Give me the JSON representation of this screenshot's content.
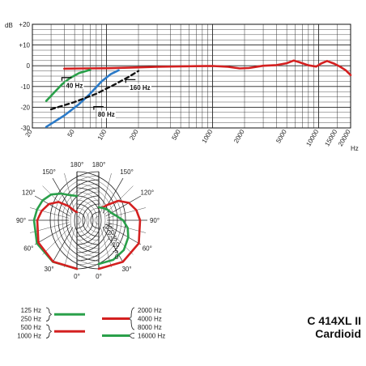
{
  "chart_data": [
    {
      "type": "line",
      "ylabel": "dB",
      "xlabel_unit": "Hz",
      "x_scale": "log",
      "xlim": [
        20,
        20000
      ],
      "ylim": [
        -30,
        20
      ],
      "grid": true,
      "y_ticks": [
        "+20",
        "+10",
        "0",
        "-10",
        "-20",
        "-30"
      ],
      "x_ticks": [
        {
          "value": 20,
          "label": "20"
        },
        {
          "value": 50,
          "label": "50"
        },
        {
          "value": 100,
          "label": "100"
        },
        {
          "value": 200,
          "label": "200"
        },
        {
          "value": 500,
          "label": "500"
        },
        {
          "value": 1000,
          "label": "1000"
        },
        {
          "value": 2000,
          "label": "2000"
        },
        {
          "value": 5000,
          "label": "5000"
        },
        {
          "value": 10000,
          "label": "10000"
        },
        {
          "value": 15000,
          "label": "15000"
        },
        {
          "value": 20000,
          "label": "20000"
        }
      ],
      "annotations": [
        {
          "text": "40 Hz",
          "x": 40,
          "y": -10
        },
        {
          "text": "80 Hz",
          "x": 80,
          "y": -24
        },
        {
          "text": "160 Hz",
          "x": 160,
          "y": -11
        }
      ],
      "series": [
        {
          "color": "#d42020",
          "style": "solid",
          "points": [
            [
              40,
              -1.4
            ],
            [
              60,
              -1.3
            ],
            [
              100,
              -1.2
            ],
            [
              200,
              -0.8
            ],
            [
              300,
              -0.5
            ],
            [
              500,
              -0.3
            ],
            [
              700,
              -0.2
            ],
            [
              1000,
              -0.1
            ],
            [
              1400,
              -0.5
            ],
            [
              1800,
              -1.3
            ],
            [
              2200,
              -1.1
            ],
            [
              3000,
              0
            ],
            [
              4000,
              0.3
            ],
            [
              5000,
              1.2
            ],
            [
              5800,
              2.5
            ],
            [
              6500,
              1.8
            ],
            [
              8000,
              0.2
            ],
            [
              9500,
              -0.4
            ],
            [
              10500,
              1
            ],
            [
              12000,
              2.3
            ],
            [
              14000,
              1
            ],
            [
              16000,
              -0.5
            ],
            [
              18000,
              -2.2
            ],
            [
              20000,
              -4.5
            ]
          ]
        },
        {
          "color": "#2aa04a",
          "style": "solid",
          "points": [
            [
              27,
              -17
            ],
            [
              32,
              -13
            ],
            [
              38,
              -9
            ],
            [
              45,
              -6
            ],
            [
              55,
              -3.5
            ],
            [
              70,
              -2
            ]
          ]
        },
        {
          "color": "#2a7ac8",
          "style": "solid",
          "points": [
            [
              27,
              -29.5
            ],
            [
              40,
              -24
            ],
            [
              55,
              -18.5
            ],
            [
              70,
              -13.5
            ],
            [
              90,
              -7.5
            ],
            [
              110,
              -4
            ],
            [
              130,
              -2.2
            ]
          ]
        },
        {
          "color": "#111111",
          "style": "dashed",
          "points": [
            [
              30,
              -21
            ],
            [
              50,
              -17.5
            ],
            [
              80,
              -13.5
            ],
            [
              120,
              -9
            ],
            [
              160,
              -5.5
            ],
            [
              200,
              -2.5
            ]
          ]
        }
      ]
    },
    {
      "type": "polar",
      "angle_labels_left": [
        "180°",
        "150°",
        "120°",
        "90°",
        "60°",
        "30°",
        "0°"
      ],
      "angle_labels_right": [
        "180°",
        "150°",
        "120°",
        "90°",
        "60°",
        "30°",
        "0°"
      ],
      "radial_labels": [
        "0",
        "-5",
        "-10",
        "-15",
        "-20",
        "-25"
      ],
      "radial_db": [
        0,
        -5,
        -10,
        -15,
        -20,
        -25
      ],
      "left_series": [
        {
          "name": "125 Hz / 250 Hz",
          "color": "#2aa04a",
          "points": [
            [
              0,
              0
            ],
            [
              30,
              -0.3
            ],
            [
              60,
              -1.5
            ],
            [
              90,
              -3.5
            ],
            [
              105,
              -4.5
            ],
            [
              120,
              -5.5
            ],
            [
              135,
              -7.5
            ],
            [
              150,
              -11
            ],
            [
              165,
              -14
            ],
            [
              180,
              -15
            ]
          ]
        },
        {
          "name": "500 Hz / 1000 Hz",
          "color": "#d42020",
          "points": [
            [
              0,
              0
            ],
            [
              30,
              -0.5
            ],
            [
              60,
              -2.5
            ],
            [
              90,
              -5.5
            ],
            [
              105,
              -7.5
            ],
            [
              120,
              -10
            ],
            [
              135,
              -14
            ],
            [
              150,
              -20
            ],
            [
              165,
              -24
            ],
            [
              180,
              -25
            ]
          ]
        }
      ],
      "right_series": [
        {
          "name": "2000 Hz / 4000 Hz / 8000 Hz",
          "color": "#d42020",
          "points": [
            [
              0,
              0
            ],
            [
              30,
              -0.3
            ],
            [
              60,
              -1.5
            ],
            [
              90,
              -4.5
            ],
            [
              105,
              -6
            ],
            [
              120,
              -8.5
            ],
            [
              135,
              -13
            ],
            [
              150,
              -19
            ],
            [
              165,
              -22
            ],
            [
              180,
              -22
            ]
          ]
        },
        {
          "name": "16000 Hz",
          "color": "#2aa04a",
          "points": [
            [
              0,
              -3
            ],
            [
              20,
              -4
            ],
            [
              40,
              -6
            ],
            [
              60,
              -9
            ],
            [
              75,
              -11.5
            ],
            [
              90,
              -15
            ],
            [
              105,
              -19
            ],
            [
              120,
              -21
            ],
            [
              140,
              -21.5
            ],
            [
              160,
              -22
            ],
            [
              180,
              -22
            ]
          ]
        }
      ],
      "legend_left": [
        {
          "labels": [
            "125 Hz",
            "250 Hz"
          ],
          "color": "#2aa04a"
        },
        {
          "labels": [
            "500 Hz",
            "1000 Hz"
          ],
          "color": "#d42020"
        }
      ],
      "legend_right": [
        {
          "labels": [
            "2000 Hz",
            "4000 Hz",
            "8000 Hz"
          ],
          "color": "#d42020"
        },
        {
          "labels": [
            "16000 Hz"
          ],
          "color": "#2aa04a"
        }
      ]
    }
  ],
  "model": {
    "name": "C 414XL II",
    "pattern": "Cardioid"
  }
}
